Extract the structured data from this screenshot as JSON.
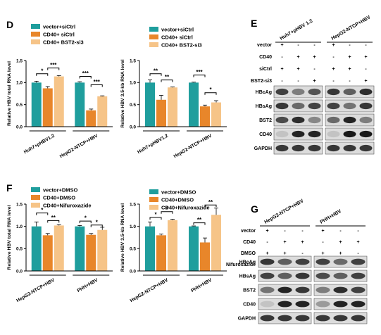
{
  "colors": {
    "teal": "#1f9e9d",
    "orange": "#e8862a",
    "peach": "#f6c488",
    "blot_bg": "#dcdcdc"
  },
  "chart_data": [
    {
      "id": "D1",
      "panel_label": "D",
      "type": "bar",
      "categories": [
        "Huh7+pHBV1.2",
        "HepG2-NTCP+HBV"
      ],
      "ylabel": "Relative HBV total RNA level",
      "ylim": [
        0,
        1.5
      ],
      "yticks": [
        0.0,
        0.5,
        1.0,
        1.5
      ],
      "legend": [
        "vector+siCtrl",
        "CD40+ siCtrl",
        "CD40+ BST2-si3"
      ],
      "series": [
        {
          "name": "vector+siCtrl",
          "color": "#1f9e9d",
          "values": [
            1.0,
            1.0
          ],
          "errors": [
            0.03,
            0.02
          ]
        },
        {
          "name": "CD40+ siCtrl",
          "color": "#e8862a",
          "values": [
            0.87,
            0.37
          ],
          "errors": [
            0.04,
            0.03
          ]
        },
        {
          "name": "CD40+ BST2-si3",
          "color": "#f6c488",
          "values": [
            1.14,
            0.69
          ],
          "errors": [
            0.02,
            0.01
          ]
        }
      ],
      "significance": [
        {
          "group": 0,
          "from": 0,
          "to": 1,
          "label": "*",
          "y": 1.2
        },
        {
          "group": 0,
          "from": 1,
          "to": 2,
          "label": "***",
          "y": 1.33
        },
        {
          "group": 1,
          "from": 0,
          "to": 1,
          "label": "***",
          "y": 1.14
        },
        {
          "group": 1,
          "from": 1,
          "to": 2,
          "label": "***",
          "y": 0.95
        }
      ]
    },
    {
      "id": "D2",
      "panel_label": "",
      "type": "bar",
      "categories": [
        "Huh7+pHBV1.2",
        "HepG2-NTCP+HBV"
      ],
      "ylabel": "Relative HBV 3.5-kb RNA level",
      "ylim": [
        0,
        1.5
      ],
      "yticks": [
        0.0,
        0.5,
        1.0,
        1.5
      ],
      "legend": [
        "vector+siCtrl",
        "CD40+ siCtrl",
        "CD40+ BST2-si3"
      ],
      "series": [
        {
          "name": "vector+siCtrl",
          "color": "#1f9e9d",
          "values": [
            1.0,
            1.0
          ],
          "errors": [
            0.06,
            0.01
          ]
        },
        {
          "name": "CD40+ siCtrl",
          "color": "#e8862a",
          "values": [
            0.61,
            0.46
          ],
          "errors": [
            0.1,
            0.03
          ]
        },
        {
          "name": "CD40+ BST2-si3",
          "color": "#f6c488",
          "values": [
            0.89,
            0.55
          ],
          "errors": [
            0.01,
            0.04
          ]
        }
      ],
      "significance": [
        {
          "group": 0,
          "from": 0,
          "to": 1,
          "label": "**",
          "y": 1.2
        },
        {
          "group": 0,
          "from": 1,
          "to": 2,
          "label": "**",
          "y": 1.06
        },
        {
          "group": 1,
          "from": 0,
          "to": 1,
          "label": "***",
          "y": 1.17
        },
        {
          "group": 1,
          "from": 1,
          "to": 2,
          "label": "*",
          "y": 0.77
        }
      ]
    },
    {
      "id": "F1",
      "panel_label": "F",
      "type": "bar",
      "categories": [
        "HepG2-NTCP+HBV",
        "PHH+HBV"
      ],
      "ylabel": "Relative HBV total RNA level",
      "ylim": [
        0,
        1.5
      ],
      "yticks": [
        0.0,
        0.5,
        1.0,
        1.5
      ],
      "legend": [
        "vector+DMSO",
        "CD40+DMSO",
        "CD40+Nifuroxazide"
      ],
      "series": [
        {
          "name": "vector+DMSO",
          "color": "#1f9e9d",
          "values": [
            1.0,
            1.0
          ],
          "errors": [
            0.1,
            0.02
          ]
        },
        {
          "name": "CD40+DMSO",
          "color": "#e8862a",
          "values": [
            0.8,
            0.81
          ],
          "errors": [
            0.04,
            0.03
          ]
        },
        {
          "name": "CD40+Nifuroxazide",
          "color": "#f6c488",
          "values": [
            1.02,
            0.92
          ],
          "errors": [
            0.02,
            0.06
          ]
        }
      ],
      "significance": [
        {
          "group": 0,
          "from": 0,
          "to": 1,
          "label": "*",
          "y": 1.3
        },
        {
          "group": 0,
          "from": 1,
          "to": 2,
          "label": "**",
          "y": 1.13
        },
        {
          "group": 1,
          "from": 0,
          "to": 1,
          "label": "*",
          "y": 1.12
        },
        {
          "group": 1,
          "from": 1,
          "to": 2,
          "label": "*",
          "y": 1.03
        }
      ]
    },
    {
      "id": "F2",
      "panel_label": "",
      "type": "bar",
      "categories": [
        "HepG2-NTCP+HBV",
        "PHH+HBV"
      ],
      "ylabel": "Relative HBV 3.5-kb RNA level",
      "ylim": [
        0,
        1.5
      ],
      "yticks": [
        0.0,
        0.5,
        1.0,
        1.5
      ],
      "legend": [
        "vector+DMSO",
        "CD40+DMSO",
        "CD40+Nifuroxazide"
      ],
      "series": [
        {
          "name": "vector+DMSO",
          "color": "#1f9e9d",
          "values": [
            1.0,
            1.0
          ],
          "errors": [
            0.1,
            0.01
          ]
        },
        {
          "name": "CD40+DMSO",
          "color": "#e8862a",
          "values": [
            0.8,
            0.64
          ],
          "errors": [
            0.03,
            0.1
          ]
        },
        {
          "name": "CD40+Nifuroxazide",
          "color": "#f6c488",
          "values": [
            1.14,
            1.26
          ],
          "errors": [
            0.02,
            0.15
          ]
        }
      ],
      "significance": [
        {
          "group": 0,
          "from": 0,
          "to": 1,
          "label": "*",
          "y": 1.2
        },
        {
          "group": 0,
          "from": 1,
          "to": 2,
          "label": "*",
          "y": 1.33
        },
        {
          "group": 1,
          "from": 0,
          "to": 1,
          "label": "**",
          "y": 1.08
        },
        {
          "group": 1,
          "from": 1,
          "to": 2,
          "label": "**",
          "y": 1.48
        }
      ]
    }
  ],
  "blots": [
    {
      "id": "E",
      "panel_label": "E",
      "groups": [
        "Huh7+pHBV 1.2",
        "HepG2-NTCP+HBV"
      ],
      "conditions": [
        {
          "label": "vector",
          "values": [
            "+",
            "-",
            "-",
            "+",
            "-",
            "-"
          ]
        },
        {
          "label": "CD40",
          "values": [
            "-",
            "+",
            "+",
            "-",
            "+",
            "+"
          ]
        },
        {
          "label": "siCtrl",
          "values": [
            "+",
            "+",
            "-",
            "+",
            "+",
            "-"
          ]
        },
        {
          "label": "BST2-si3",
          "values": [
            "-",
            "-",
            "+",
            "-",
            "-",
            "+"
          ]
        }
      ],
      "bands": [
        {
          "label": "HBcAg",
          "intensity": [
            0.75,
            0.45,
            0.65,
            0.8,
            0.6,
            0.85
          ]
        },
        {
          "label": "HBsAg",
          "intensity": [
            0.8,
            0.55,
            0.75,
            0.75,
            0.5,
            0.8
          ]
        },
        {
          "label": "BST2",
          "intensity": [
            0.7,
            0.85,
            0.4,
            0.55,
            0.9,
            0.45
          ]
        },
        {
          "label": "CD40",
          "intensity": [
            0.1,
            0.9,
            0.9,
            0.1,
            0.95,
            0.95
          ]
        },
        {
          "label": "GAPDH",
          "intensity": [
            0.8,
            0.8,
            0.8,
            0.8,
            0.8,
            0.8
          ]
        }
      ]
    },
    {
      "id": "G",
      "panel_label": "G",
      "groups": [
        "HepG2-NTCP+HBV",
        "PHH+HBV"
      ],
      "conditions": [
        {
          "label": "vector",
          "values": [
            "+",
            "-",
            "-",
            "+",
            "-",
            "-"
          ]
        },
        {
          "label": "CD40",
          "values": [
            "-",
            "+",
            "+",
            "-",
            "+",
            "+"
          ]
        },
        {
          "label": "DMSO",
          "values": [
            "+",
            "+",
            "-",
            "+",
            "+",
            "-"
          ]
        },
        {
          "label": "Nifuroxazide",
          "values": [
            "-",
            "-",
            "+",
            "-",
            "-",
            "+"
          ]
        }
      ],
      "bands": [
        {
          "label": "HBcAg",
          "intensity": [
            0.8,
            0.6,
            0.75,
            0.75,
            0.55,
            0.75
          ]
        },
        {
          "label": "HBsAg",
          "intensity": [
            0.75,
            0.6,
            0.8,
            0.7,
            0.6,
            0.75
          ]
        },
        {
          "label": "BST2",
          "intensity": [
            0.5,
            0.9,
            0.8,
            0.45,
            0.85,
            0.75
          ]
        },
        {
          "label": "CD40",
          "intensity": [
            0.1,
            0.9,
            0.9,
            0.3,
            0.9,
            0.9
          ]
        },
        {
          "label": "GAPDH",
          "intensity": [
            0.8,
            0.8,
            0.8,
            0.8,
            0.8,
            0.8
          ]
        }
      ]
    }
  ]
}
